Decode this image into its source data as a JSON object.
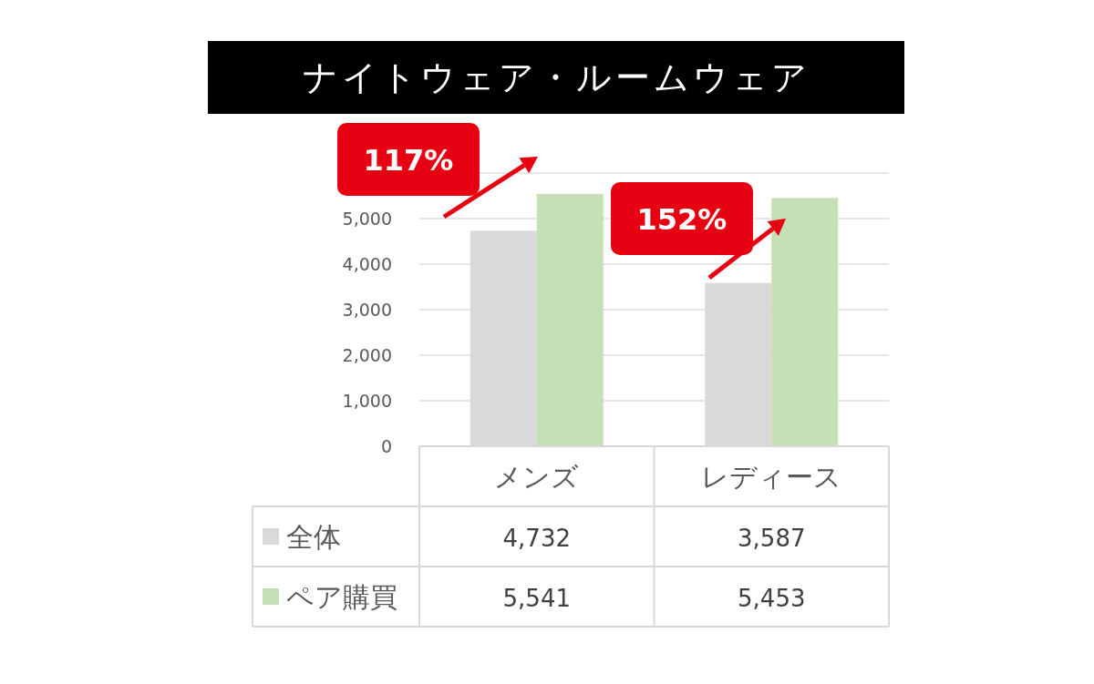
{
  "chart_data": {
    "type": "bar",
    "title": "ナイトウェア・ルームウェア",
    "categories": [
      "メンズ",
      "レディース"
    ],
    "series": [
      {
        "name": "全体",
        "color": "#d9d9d9",
        "values": [
          4732,
          3587
        ],
        "value_labels": [
          "4,732",
          "3,587"
        ]
      },
      {
        "name": "ペア購買",
        "color": "#c5e0b4",
        "values": [
          5541,
          5453
        ],
        "value_labels": [
          "5,541",
          "5,453"
        ]
      }
    ],
    "ylim": [
      0,
      6000
    ],
    "yticks": [
      {
        "value": 0,
        "label": "0"
      },
      {
        "value": 1000,
        "label": "1,000"
      },
      {
        "value": 2000,
        "label": "2,000"
      },
      {
        "value": 3000,
        "label": "3,000"
      },
      {
        "value": 4000,
        "label": "4,000"
      },
      {
        "value": 5000,
        "label": "5,000"
      },
      {
        "value": 6000,
        "label": null
      }
    ],
    "grid": "y",
    "legend": "bottom left",
    "annotations": [
      "117%",
      "152%"
    ]
  }
}
